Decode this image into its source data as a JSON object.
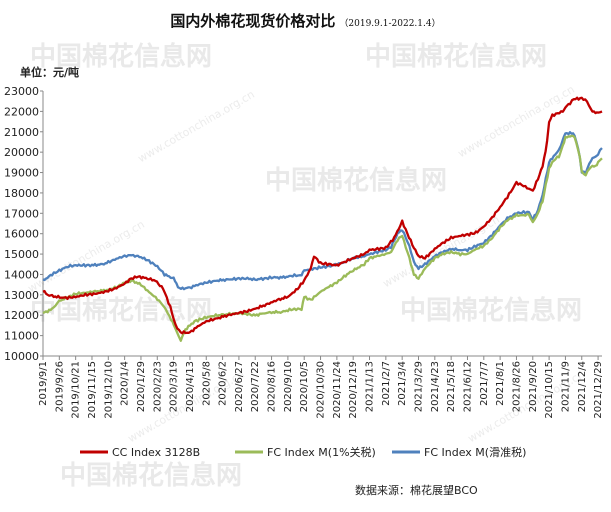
{
  "title": "国内外棉花现货价格对比",
  "title_note": "（2019.9.1-2022.1.4）",
  "unit_label": "单位：元/吨",
  "source": "数据来源：棉花展望BCO",
  "watermark": {
    "text": "中国棉花信息网",
    "url": "www.cottonchina.org.cn"
  },
  "colors": {
    "cc": "#c00000",
    "fc1": "#9bbb59",
    "fc2": "#4f81bd"
  },
  "chart_data": {
    "type": "line",
    "title": "国内外棉花现货价格对比",
    "ylabel": "单位：元/吨",
    "ylim": [
      10000,
      23000
    ],
    "yticks": [
      10000,
      11000,
      12000,
      13000,
      14000,
      15000,
      16000,
      17000,
      18000,
      19000,
      20000,
      21000,
      22000,
      23000
    ],
    "xlim": [
      "2019-09-01",
      "2022-01-04"
    ],
    "xticks": [
      "2019/9/1",
      "2019/9/26",
      "2019/10/21",
      "2019/11/15",
      "2019/12/10",
      "2020/1/4",
      "2020/1/29",
      "2020/2/23",
      "2020/3/19",
      "2020/4/13",
      "2020/5/8",
      "2020/6/2",
      "2020/6/27",
      "2020/7/22",
      "2020/8/16",
      "2020/9/10",
      "2020/10/5",
      "2020/10/30",
      "2020/11/24",
      "2020/12/19",
      "2021/1/13",
      "2021/2/7",
      "2021/3/4",
      "2021/3/29",
      "2021/4/23",
      "2021/5/18",
      "2021/6/12",
      "2021/7/7",
      "2021/8/1",
      "2021/8/26",
      "2021/9/20",
      "2021/10/15",
      "2021/11/9",
      "2021/12/4",
      "2021/12/29"
    ],
    "grid": false,
    "legend_position": "bottom",
    "series": [
      {
        "name": "CC Index 3128B",
        "color": "#c00000",
        "points": [
          [
            "2019-09-01",
            13200
          ],
          [
            "2019-09-08",
            13000
          ],
          [
            "2019-09-22",
            12900
          ],
          [
            "2019-10-06",
            12850
          ],
          [
            "2019-10-21",
            12900
          ],
          [
            "2019-11-05",
            13000
          ],
          [
            "2019-11-20",
            13050
          ],
          [
            "2019-12-05",
            13150
          ],
          [
            "2019-12-20",
            13300
          ],
          [
            "2020-01-04",
            13550
          ],
          [
            "2020-01-14",
            13800
          ],
          [
            "2020-01-25",
            13900
          ],
          [
            "2020-02-08",
            13800
          ],
          [
            "2020-02-20",
            13700
          ],
          [
            "2020-03-03",
            13300
          ],
          [
            "2020-03-14",
            12400
          ],
          [
            "2020-03-22",
            11500
          ],
          [
            "2020-03-30",
            11150
          ],
          [
            "2020-04-13",
            11150
          ],
          [
            "2020-04-25",
            11450
          ],
          [
            "2020-05-08",
            11700
          ],
          [
            "2020-05-25",
            11850
          ],
          [
            "2020-06-10",
            12000
          ],
          [
            "2020-06-25",
            12100
          ],
          [
            "2020-07-10",
            12200
          ],
          [
            "2020-07-25",
            12350
          ],
          [
            "2020-08-10",
            12550
          ],
          [
            "2020-08-25",
            12750
          ],
          [
            "2020-09-10",
            12900
          ],
          [
            "2020-09-25",
            13300
          ],
          [
            "2020-10-05",
            13700
          ],
          [
            "2020-10-15",
            14300
          ],
          [
            "2020-10-20",
            14900
          ],
          [
            "2020-10-30",
            14550
          ],
          [
            "2020-11-12",
            14500
          ],
          [
            "2020-11-24",
            14450
          ],
          [
            "2020-12-08",
            14650
          ],
          [
            "2020-12-19",
            14800
          ],
          [
            "2021-01-05",
            15000
          ],
          [
            "2021-01-13",
            15200
          ],
          [
            "2021-01-25",
            15250
          ],
          [
            "2021-02-07",
            15300
          ],
          [
            "2021-02-20",
            15800
          ],
          [
            "2021-03-01",
            16400
          ],
          [
            "2021-03-04",
            16600
          ],
          [
            "2021-03-12",
            16000
          ],
          [
            "2021-03-22",
            15300
          ],
          [
            "2021-03-29",
            14900
          ],
          [
            "2021-04-08",
            14800
          ],
          [
            "2021-04-23",
            15250
          ],
          [
            "2021-05-03",
            15500
          ],
          [
            "2021-05-18",
            15800
          ],
          [
            "2021-06-02",
            15900
          ],
          [
            "2021-06-12",
            15950
          ],
          [
            "2021-06-25",
            16050
          ],
          [
            "2021-07-07",
            16350
          ],
          [
            "2021-07-20",
            16800
          ],
          [
            "2021-08-01",
            17300
          ],
          [
            "2021-08-12",
            17800
          ],
          [
            "2021-08-20",
            18200
          ],
          [
            "2021-08-26",
            18500
          ],
          [
            "2021-09-06",
            18350
          ],
          [
            "2021-09-14",
            18200
          ],
          [
            "2021-09-20",
            18100
          ],
          [
            "2021-09-28",
            18700
          ],
          [
            "2021-10-05",
            19300
          ],
          [
            "2021-10-12",
            20500
          ],
          [
            "2021-10-15",
            21500
          ],
          [
            "2021-10-20",
            21800
          ],
          [
            "2021-10-28",
            21900
          ],
          [
            "2021-11-05",
            22000
          ],
          [
            "2021-11-09",
            22200
          ],
          [
            "2021-11-16",
            22400
          ],
          [
            "2021-11-22",
            22600
          ],
          [
            "2021-12-04",
            22650
          ],
          [
            "2021-12-12",
            22500
          ],
          [
            "2021-12-18",
            22100
          ],
          [
            "2021-12-25",
            21900
          ],
          [
            "2021-12-29",
            21950
          ],
          [
            "2022-01-04",
            22000
          ]
        ]
      },
      {
        "name": "FC Index M(1%关税)",
        "color": "#9bbb59",
        "points": [
          [
            "2019-09-01",
            12100
          ],
          [
            "2019-09-15",
            12300
          ],
          [
            "2019-09-26",
            12700
          ],
          [
            "2019-10-10",
            12900
          ],
          [
            "2019-10-21",
            13050
          ],
          [
            "2019-11-05",
            13100
          ],
          [
            "2019-11-15",
            13150
          ],
          [
            "2019-12-01",
            13200
          ],
          [
            "2019-12-10",
            13250
          ],
          [
            "2019-12-25",
            13400
          ],
          [
            "2020-01-04",
            13600
          ],
          [
            "2020-01-15",
            13700
          ],
          [
            "2020-01-29",
            13500
          ],
          [
            "2020-02-08",
            13200
          ],
          [
            "2020-02-23",
            12800
          ],
          [
            "2020-03-05",
            12400
          ],
          [
            "2020-03-15",
            11800
          ],
          [
            "2020-03-24",
            11200
          ],
          [
            "2020-03-30",
            10750
          ],
          [
            "2020-04-06",
            11300
          ],
          [
            "2020-04-20",
            11700
          ],
          [
            "2020-05-08",
            11900
          ],
          [
            "2020-05-25",
            12000
          ],
          [
            "2020-06-10",
            12050
          ],
          [
            "2020-06-27",
            12100
          ],
          [
            "2020-07-10",
            12050
          ],
          [
            "2020-07-22",
            12000
          ],
          [
            "2020-08-05",
            12100
          ],
          [
            "2020-08-16",
            12150
          ],
          [
            "2020-09-01",
            12150
          ],
          [
            "2020-09-10",
            12250
          ],
          [
            "2020-09-20",
            12300
          ],
          [
            "2020-10-01",
            12300
          ],
          [
            "2020-10-05",
            12900
          ],
          [
            "2020-10-15",
            12750
          ],
          [
            "2020-10-30",
            13150
          ],
          [
            "2020-11-12",
            13400
          ],
          [
            "2020-11-24",
            13600
          ],
          [
            "2020-12-05",
            13900
          ],
          [
            "2020-12-19",
            14200
          ],
          [
            "2021-01-05",
            14500
          ],
          [
            "2021-01-13",
            14800
          ],
          [
            "2021-01-25",
            14900
          ],
          [
            "2021-02-07",
            15000
          ],
          [
            "2021-02-15",
            15100
          ],
          [
            "2021-02-25",
            15700
          ],
          [
            "2021-03-04",
            15900
          ],
          [
            "2021-03-15",
            14800
          ],
          [
            "2021-03-22",
            14000
          ],
          [
            "2021-03-29",
            13800
          ],
          [
            "2021-04-08",
            14300
          ],
          [
            "2021-04-23",
            14800
          ],
          [
            "2021-05-05",
            15000
          ],
          [
            "2021-05-18",
            15100
          ],
          [
            "2021-06-01",
            15000
          ],
          [
            "2021-06-12",
            15000
          ],
          [
            "2021-06-25",
            15250
          ],
          [
            "2021-07-07",
            15400
          ],
          [
            "2021-07-20",
            15800
          ],
          [
            "2021-08-01",
            16300
          ],
          [
            "2021-08-12",
            16650
          ],
          [
            "2021-08-26",
            16900
          ],
          [
            "2021-09-06",
            16900
          ],
          [
            "2021-09-14",
            16950
          ],
          [
            "2021-09-20",
            16550
          ],
          [
            "2021-09-28",
            17000
          ],
          [
            "2021-10-05",
            17600
          ],
          [
            "2021-10-15",
            19200
          ],
          [
            "2021-10-22",
            19600
          ],
          [
            "2021-10-30",
            19800
          ],
          [
            "2021-11-05",
            20300
          ],
          [
            "2021-11-09",
            20700
          ],
          [
            "2021-11-16",
            20800
          ],
          [
            "2021-11-23",
            20750
          ],
          [
            "2021-12-01",
            19800
          ],
          [
            "2021-12-04",
            19000
          ],
          [
            "2021-12-10",
            18900
          ],
          [
            "2021-12-18",
            19300
          ],
          [
            "2021-12-25",
            19300
          ],
          [
            "2021-12-29",
            19500
          ],
          [
            "2022-01-04",
            19700
          ]
        ]
      },
      {
        "name": "FC Index M(滑准税)",
        "color": "#4f81bd",
        "points": [
          [
            "2019-09-01",
            13700
          ],
          [
            "2019-09-15",
            14000
          ],
          [
            "2019-09-26",
            14200
          ],
          [
            "2019-10-10",
            14400
          ],
          [
            "2019-10-21",
            14450
          ],
          [
            "2019-11-05",
            14450
          ],
          [
            "2019-11-15",
            14450
          ],
          [
            "2019-12-01",
            14500
          ],
          [
            "2019-12-10",
            14600
          ],
          [
            "2019-12-25",
            14800
          ],
          [
            "2020-01-04",
            14900
          ],
          [
            "2020-01-15",
            14950
          ],
          [
            "2020-01-29",
            14850
          ],
          [
            "2020-02-08",
            14700
          ],
          [
            "2020-02-23",
            14400
          ],
          [
            "2020-03-05",
            14000
          ],
          [
            "2020-03-19",
            13800
          ],
          [
            "2020-03-28",
            13300
          ],
          [
            "2020-04-13",
            13350
          ],
          [
            "2020-04-25",
            13500
          ],
          [
            "2020-05-08",
            13600
          ],
          [
            "2020-05-25",
            13700
          ],
          [
            "2020-06-10",
            13750
          ],
          [
            "2020-06-27",
            13800
          ],
          [
            "2020-07-10",
            13800
          ],
          [
            "2020-07-22",
            13750
          ],
          [
            "2020-08-05",
            13800
          ],
          [
            "2020-08-16",
            13850
          ],
          [
            "2020-09-01",
            13850
          ],
          [
            "2020-09-10",
            13900
          ],
          [
            "2020-09-20",
            13950
          ],
          [
            "2020-10-01",
            13950
          ],
          [
            "2020-10-05",
            14200
          ],
          [
            "2020-10-15",
            14250
          ],
          [
            "2020-10-30",
            14350
          ],
          [
            "2020-11-12",
            14400
          ],
          [
            "2020-11-24",
            14500
          ],
          [
            "2020-12-05",
            14600
          ],
          [
            "2020-12-19",
            14800
          ],
          [
            "2021-01-05",
            14900
          ],
          [
            "2021-01-13",
            15000
          ],
          [
            "2021-01-25",
            15100
          ],
          [
            "2021-02-07",
            15200
          ],
          [
            "2021-02-15",
            15350
          ],
          [
            "2021-02-25",
            16000
          ],
          [
            "2021-03-04",
            16200
          ],
          [
            "2021-03-15",
            15400
          ],
          [
            "2021-03-22",
            14600
          ],
          [
            "2021-03-29",
            14300
          ],
          [
            "2021-04-08",
            14500
          ],
          [
            "2021-04-23",
            14900
          ],
          [
            "2021-05-05",
            15100
          ],
          [
            "2021-05-18",
            15250
          ],
          [
            "2021-06-01",
            15200
          ],
          [
            "2021-06-12",
            15200
          ],
          [
            "2021-06-25",
            15400
          ],
          [
            "2021-07-07",
            15550
          ],
          [
            "2021-07-20",
            15950
          ],
          [
            "2021-08-01",
            16400
          ],
          [
            "2021-08-12",
            16750
          ],
          [
            "2021-08-26",
            17000
          ],
          [
            "2021-09-06",
            17050
          ],
          [
            "2021-09-14",
            17050
          ],
          [
            "2021-09-20",
            16700
          ],
          [
            "2021-09-28",
            17150
          ],
          [
            "2021-10-05",
            17900
          ],
          [
            "2021-10-15",
            19500
          ],
          [
            "2021-10-22",
            19800
          ],
          [
            "2021-10-30",
            20100
          ],
          [
            "2021-11-05",
            20600
          ],
          [
            "2021-11-09",
            20900
          ],
          [
            "2021-11-16",
            20950
          ],
          [
            "2021-11-23",
            20850
          ],
          [
            "2021-12-01",
            19800
          ],
          [
            "2021-12-04",
            19000
          ],
          [
            "2021-12-10",
            19000
          ],
          [
            "2021-12-18",
            19600
          ],
          [
            "2021-12-25",
            19800
          ],
          [
            "2021-12-29",
            19900
          ],
          [
            "2022-01-04",
            20200
          ]
        ]
      }
    ]
  }
}
